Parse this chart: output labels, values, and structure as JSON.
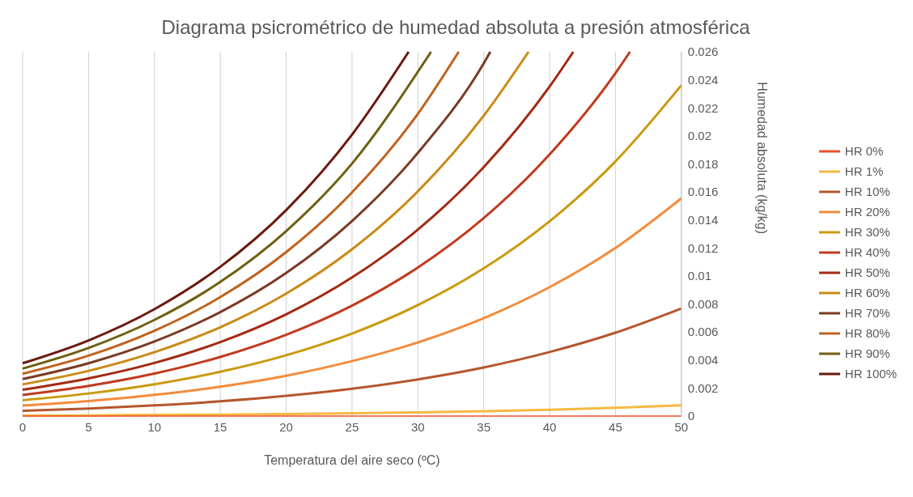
{
  "chart_data": {
    "type": "line",
    "title": "Diagrama psicrométrico de humedad absoluta a presión atmosférica",
    "xlabel": "Temperatura del aire seco (ºC)",
    "ylabel": "Humedad absoluta (kg/kg)",
    "xlim": [
      0,
      50
    ],
    "xticks": [
      0,
      5,
      10,
      15,
      20,
      25,
      30,
      35,
      40,
      45,
      50
    ],
    "ylim": [
      0,
      0.026
    ],
    "yticks": [
      0,
      0.002,
      0.004,
      0.006,
      0.008,
      0.01,
      0.012,
      0.014,
      0.016,
      0.018,
      0.02,
      0.022,
      0.024,
      0.026
    ],
    "grid": "x",
    "legend": "right",
    "marker": "none",
    "line_style": "solid",
    "series": [
      {
        "name": "HR 0%",
        "color": "#e8502a",
        "x": [
          0,
          5,
          10,
          15,
          20,
          25,
          30,
          35,
          40,
          45,
          50
        ],
        "values": [
          0,
          0,
          0,
          0,
          0,
          0,
          0,
          0,
          0,
          0,
          0
        ]
      },
      {
        "name": "HR 1%",
        "color": "#f5b942",
        "x": [
          0,
          5,
          10,
          15,
          20,
          25,
          30,
          35,
          40,
          45,
          50
        ],
        "values": [
          4e-05,
          5e-05,
          8e-05,
          0.0001,
          0.00014,
          0.0002,
          0.00026,
          0.00035,
          0.00045,
          0.00059,
          0.00076
        ]
      },
      {
        "name": "HR 10%",
        "color": "#b5562e",
        "x": [
          0,
          5,
          10,
          15,
          20,
          25,
          30,
          35,
          40,
          45,
          50
        ],
        "values": [
          0.00038,
          0.00054,
          0.00076,
          0.00105,
          0.00144,
          0.00195,
          0.00262,
          0.00347,
          0.00457,
          0.00595,
          0.00768
        ]
      },
      {
        "name": "HR 20%",
        "color": "#f28c3c",
        "x": [
          0,
          5,
          10,
          15,
          20,
          25,
          30,
          35,
          40,
          45,
          50
        ],
        "values": [
          0.00075,
          0.00107,
          0.00151,
          0.0021,
          0.00288,
          0.00392,
          0.00526,
          0.00699,
          0.0092,
          0.012,
          0.01554
        ]
      },
      {
        "name": "HR 30%",
        "color": "#c99a0e",
        "x": [
          0,
          5,
          10,
          15,
          20,
          25,
          30,
          35,
          40,
          45,
          50
        ],
        "values": [
          0.00113,
          0.00161,
          0.00227,
          0.00316,
          0.00434,
          0.00589,
          0.00792,
          0.01054,
          0.0139,
          0.01818,
          0.02361
        ]
      },
      {
        "name": "HR 40%",
        "color": "#c23a1e",
        "x": [
          0,
          5,
          10,
          15,
          20,
          25,
          30,
          35,
          40,
          45,
          46.1
        ],
        "values": [
          0.0015,
          0.00215,
          0.00303,
          0.00422,
          0.0058,
          0.00788,
          0.0106,
          0.01413,
          0.01868,
          0.02448,
          0.026
        ]
      },
      {
        "name": "HR 50%",
        "color": "#a32a12",
        "x": [
          0,
          5,
          10,
          15,
          20,
          25,
          30,
          35,
          40,
          41.8
        ],
        "values": [
          0.00188,
          0.00269,
          0.00379,
          0.00528,
          0.00726,
          0.00989,
          0.01331,
          0.01777,
          0.02352,
          0.026
        ]
      },
      {
        "name": "HR 60%",
        "color": "#c98a16",
        "x": [
          0,
          5,
          10,
          15,
          20,
          25,
          30,
          35,
          38.4
        ],
        "values": [
          0.00226,
          0.00323,
          0.00456,
          0.00634,
          0.00874,
          0.0119,
          0.01604,
          0.02144,
          0.026
        ]
      },
      {
        "name": "HR 70%",
        "color": "#7a3b24",
        "x": [
          0,
          5,
          10,
          15,
          20,
          25,
          30,
          35,
          35.5
        ],
        "values": [
          0.00264,
          0.00377,
          0.00532,
          0.00742,
          0.01021,
          0.01392,
          0.01879,
          0.02518,
          0.026
        ]
      },
      {
        "name": "HR 80%",
        "color": "#c0621e",
        "x": [
          0,
          5,
          10,
          15,
          20,
          25,
          30,
          33.1
        ],
        "values": [
          0.00302,
          0.00431,
          0.00609,
          0.00849,
          0.0117,
          0.01596,
          0.02157,
          0.026
        ]
      },
      {
        "name": "HR 90%",
        "color": "#6e6012",
        "x": [
          0,
          5,
          10,
          15,
          20,
          25,
          31
        ],
        "values": [
          0.00339,
          0.00486,
          0.00686,
          0.00957,
          0.0132,
          0.01802,
          0.026
        ]
      },
      {
        "name": "HR 100%",
        "color": "#6b1a0e",
        "x": [
          0,
          5,
          10,
          15,
          20,
          25,
          29.3
        ],
        "values": [
          0.00377,
          0.0054,
          0.00763,
          0.01065,
          0.0147,
          0.02009,
          0.026
        ]
      }
    ]
  }
}
